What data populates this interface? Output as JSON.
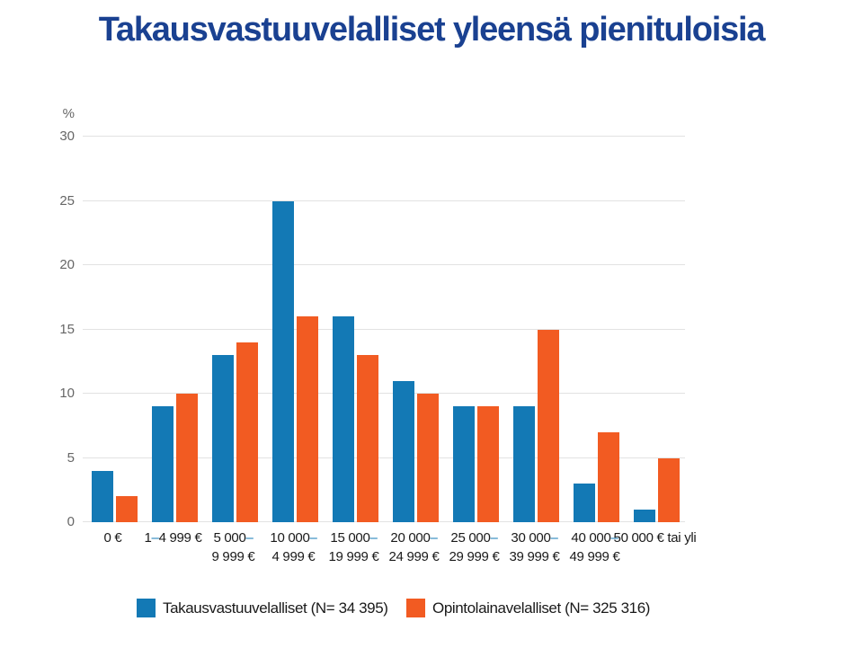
{
  "title": "Takausvastuuvelalliset yleensä pienituloisia",
  "colors": {
    "title_blue": "#1a4191",
    "bar_blue": "#1379b5",
    "bar_orange": "#f25b22",
    "dash_blue": "#1379b5",
    "axis_text_gray": "#666666",
    "label_text_dark": "#1a1a1a",
    "gridline_gray": "#e2e2e2",
    "background": "#ffffff"
  },
  "chart_data": {
    "type": "bar",
    "title": "Takausvastuuvelalliset yleensä pienituloisia",
    "unit_label": "%",
    "xlabel": "",
    "ylabel": "%",
    "ylim": [
      0,
      30
    ],
    "yticks": [
      0,
      5,
      10,
      15,
      20,
      25,
      30
    ],
    "grid": true,
    "legend_position": "bottom",
    "categories": [
      {
        "line1": "0 €",
        "line2": ""
      },
      {
        "line1": "1–4 999 €",
        "line2": ""
      },
      {
        "line1": "5 000–",
        "line2": "9 999 €"
      },
      {
        "line1": "10 000–",
        "line2": "4 999 €"
      },
      {
        "line1": "15 000–",
        "line2": "19 999 €"
      },
      {
        "line1": "20 000–",
        "line2": "24 999 €"
      },
      {
        "line1": "25 000–",
        "line2": "29 999 €"
      },
      {
        "line1": "30 000–",
        "line2": "39 999 €"
      },
      {
        "line1": "40 000–",
        "line2": "49 999 €"
      },
      {
        "line1": "50 000 € tai yli",
        "line2": ""
      }
    ],
    "series": [
      {
        "name": "Takausvastuuvelalliset (N= 34 395)",
        "color": "#1379b5",
        "values": [
          4,
          9,
          13,
          25,
          16,
          11,
          9,
          9,
          3,
          1
        ]
      },
      {
        "name": "Opintolainavelalliset (N= 325 316)",
        "color": "#f25b22",
        "values": [
          2,
          10,
          14,
          16,
          13,
          10,
          9,
          15,
          7,
          5
        ]
      }
    ]
  }
}
